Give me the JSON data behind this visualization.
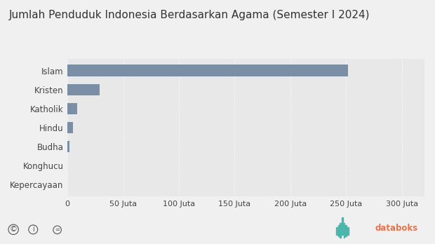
{
  "title": "Jumlah Penduduk Indonesia Berdasarkan Agama (Semester I 2024)",
  "categories": [
    "Islam",
    "Kristen",
    "Katholik",
    "Hindu",
    "Budha",
    "Konghucu",
    "Kepercayaan"
  ],
  "values": [
    251800000,
    29000000,
    8500000,
    4700000,
    2000000,
    70000,
    120000
  ],
  "bar_color": "#7a8fa6",
  "background_color": "#e8e8e8",
  "outer_background": "#f0f0f0",
  "plot_bg": "#e8e8e8",
  "xlim": [
    0,
    320000000
  ],
  "xticks": [
    0,
    50000000,
    100000000,
    150000000,
    200000000,
    250000000,
    300000000
  ],
  "xtick_labels": [
    "0",
    "50 Juta",
    "100 Juta",
    "150 Juta",
    "200 Juta",
    "250 Juta",
    "300 Juta"
  ],
  "title_fontsize": 11,
  "tick_fontsize": 8,
  "label_fontsize": 8.5,
  "grid_color": "#ffffff",
  "bar_height": 0.6,
  "databoks_color": "#e8734a",
  "databoks_teal": "#4db6ac"
}
